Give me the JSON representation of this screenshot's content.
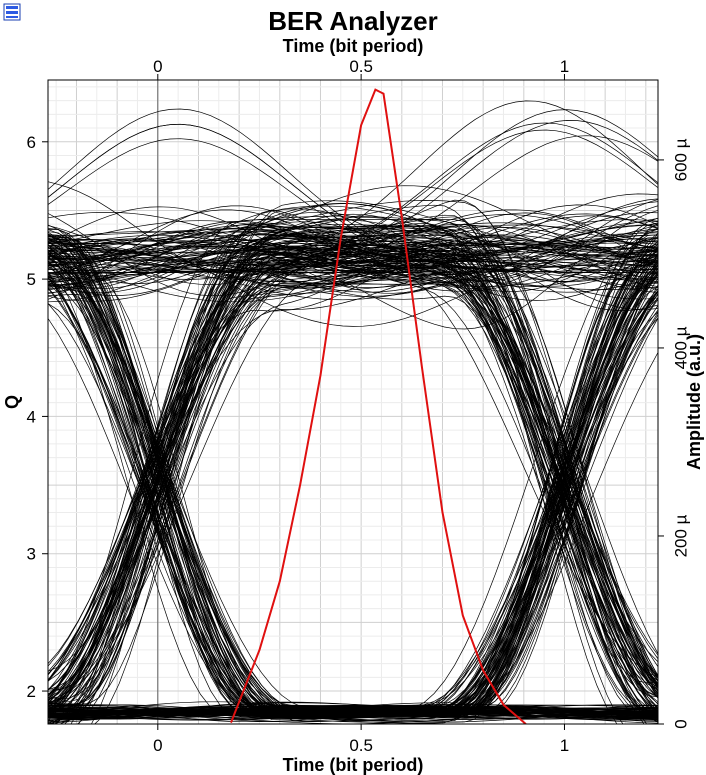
{
  "chart_data": {
    "type": "line",
    "title": "BER Analyzer",
    "xlabel": "Time (bit period)",
    "x2label": "Time (bit period)",
    "ylabel": "Q",
    "y2label": "Amplitude (a.u.)",
    "xlim": [
      -0.27,
      1.23
    ],
    "ylim": [
      1.76,
      6.45
    ],
    "y2lim": [
      0,
      0.000685
    ],
    "xticks": [
      0,
      0.5,
      1
    ],
    "xtick_labels": [
      "0",
      "0.5",
      "1"
    ],
    "yticks": [
      2,
      3,
      4,
      5,
      6
    ],
    "ytick_labels": [
      "2",
      "3",
      "4",
      "5",
      "6"
    ],
    "y2ticks": [
      0,
      0.0002,
      0.0004,
      0.0006
    ],
    "y2tick_labels": [
      "0",
      "200 µ",
      "400 µ",
      "600 µ"
    ],
    "grid": true,
    "eye_diagram": {
      "color": "#000000",
      "bit_period": 1,
      "crossing_times": [
        0,
        1
      ],
      "eye_center": 0.5,
      "level_high": 0.0005,
      "level_low": 1.2e-05,
      "eye_top_at_center": 0.000335,
      "eye_bottom_at_center": 4e-05,
      "spread_high": 6e-05,
      "max_peak": 0.000685
    },
    "series": [
      {
        "color": "#e01010",
        "axis": "left",
        "x": [
          0.18,
          0.25,
          0.3,
          0.35,
          0.4,
          0.45,
          0.5,
          0.535,
          0.555,
          0.6,
          0.65,
          0.7,
          0.75,
          0.8,
          0.85,
          0.905
        ],
        "y": [
          1.77,
          2.3,
          2.8,
          3.5,
          4.3,
          5.3,
          6.12,
          6.38,
          6.35,
          5.45,
          4.35,
          3.3,
          2.55,
          2.15,
          1.9,
          1.76
        ]
      }
    ]
  }
}
